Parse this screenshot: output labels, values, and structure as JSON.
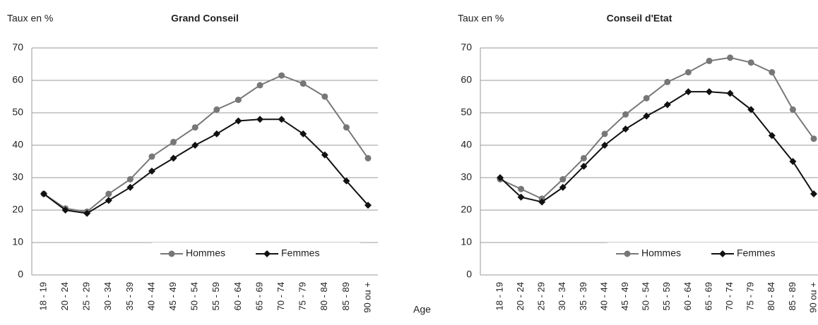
{
  "chart_data": [
    {
      "type": "line",
      "title": "Grand Conseil",
      "ylabel": "Taux en %",
      "xlabel": "Age",
      "categories": [
        "18 - 19",
        "20 - 24",
        "25 - 29",
        "30 - 34",
        "35 - 39",
        "40 - 44",
        "45 - 49",
        "50 - 54",
        "55 - 59",
        "60 - 64",
        "65 - 69",
        "70 - 74",
        "75 - 79",
        "80 - 84",
        "85 - 89",
        "90 ou +"
      ],
      "series": [
        {
          "name": "Hommes",
          "color": "#777777",
          "marker": "circle",
          "values": [
            25,
            20.5,
            19.5,
            25,
            29.5,
            36.5,
            41,
            45.5,
            51,
            54,
            58.5,
            61.5,
            59,
            55,
            45.5,
            36
          ]
        },
        {
          "name": "Femmes",
          "color": "#111111",
          "marker": "diamond",
          "values": [
            25,
            20,
            19,
            23,
            27,
            32,
            36,
            40,
            43.5,
            47.5,
            48,
            48,
            43.5,
            37,
            29,
            21.5
          ]
        }
      ],
      "ylim": [
        0,
        70
      ],
      "yticks": [
        0,
        10,
        20,
        30,
        40,
        50,
        60,
        70
      ],
      "grid": true,
      "legend": "lower right"
    },
    {
      "type": "line",
      "title": "Conseil d'Etat",
      "ylabel": "Taux en %",
      "categories": [
        "18 - 19",
        "20 - 24",
        "25 - 29",
        "30 - 34",
        "35 - 39",
        "40 - 44",
        "45 - 49",
        "50 - 54",
        "55 - 59",
        "60 - 64",
        "65 - 69",
        "70 - 74",
        "75 - 79",
        "80 - 84",
        "85 - 89",
        "90 ou +"
      ],
      "series": [
        {
          "name": "Hommes",
          "color": "#777777",
          "marker": "circle",
          "values": [
            29.5,
            26.5,
            23.5,
            29.5,
            36,
            43.5,
            49.5,
            54.5,
            59.5,
            62.5,
            66,
            67,
            65.5,
            62.5,
            51,
            42
          ]
        },
        {
          "name": "Femmes",
          "color": "#111111",
          "marker": "diamond",
          "values": [
            30,
            24,
            22.5,
            27,
            33.5,
            40,
            45,
            49,
            52.5,
            56.5,
            56.5,
            56,
            51,
            43,
            35,
            25
          ]
        }
      ],
      "ylim": [
        0,
        70
      ],
      "yticks": [
        0,
        10,
        20,
        30,
        40,
        50,
        60,
        70
      ],
      "grid": true,
      "legend": "lower right"
    }
  ]
}
